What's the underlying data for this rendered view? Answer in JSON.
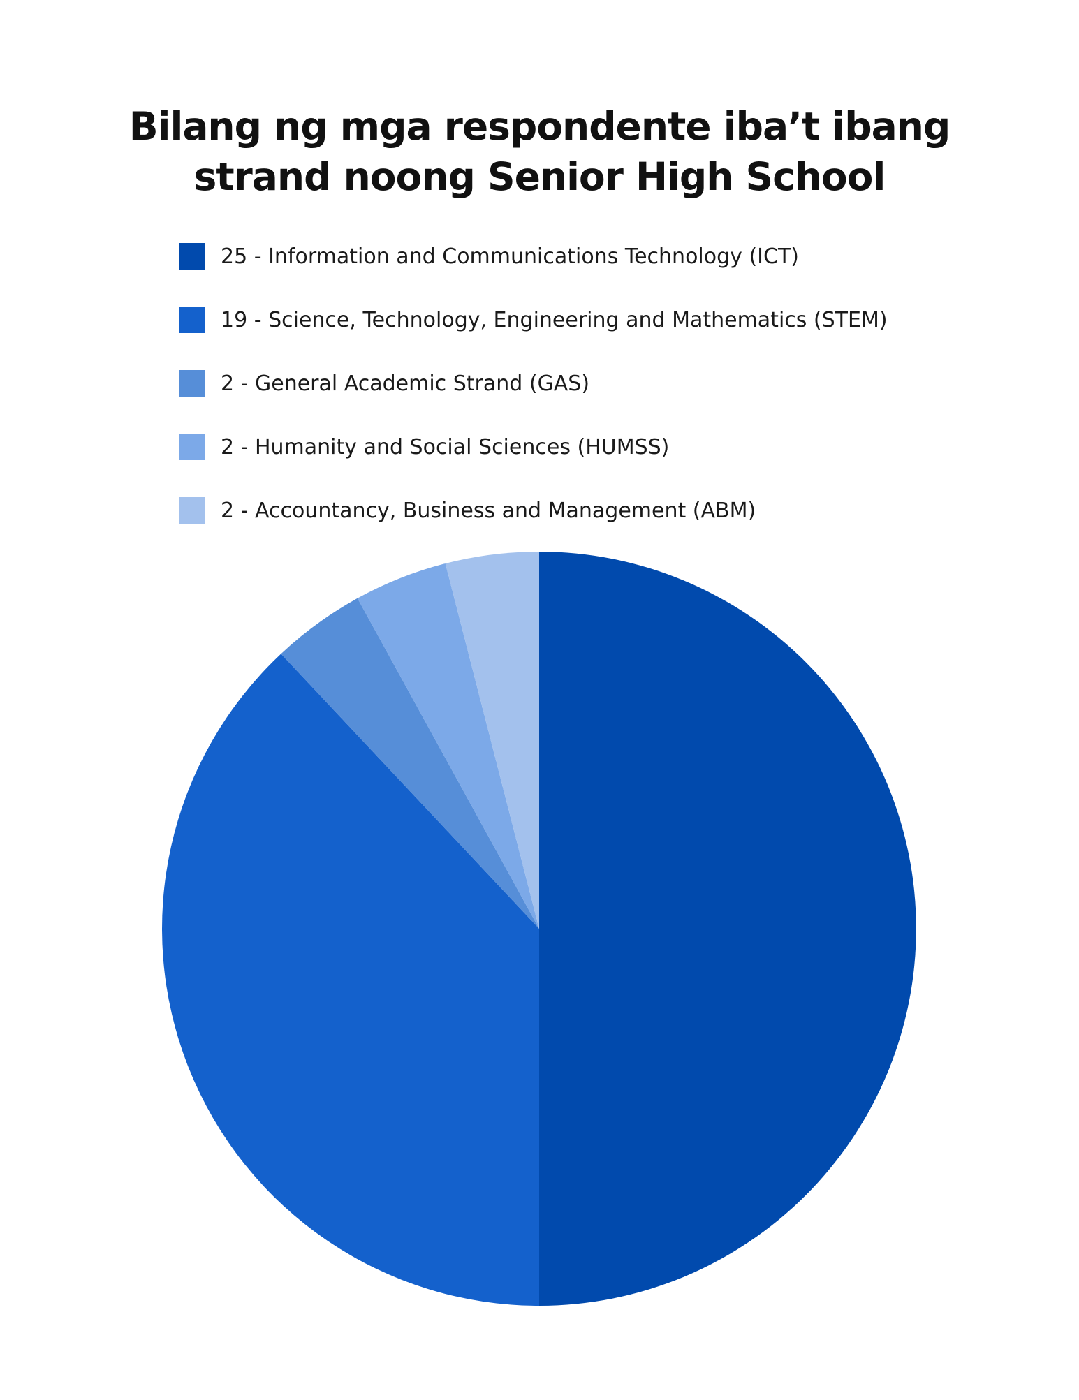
{
  "chart_data": {
    "type": "pie",
    "title_lines": [
      "Bilang ng mga respondente iba’t ibang",
      "strand noong Senior High School"
    ],
    "slices": [
      {
        "label": "25 - Information and Communications Technology (ICT)",
        "value": 25,
        "color": "#014aad"
      },
      {
        "label": "19 - Science, Technology, Engineering and Mathematics (STEM)",
        "value": 19,
        "color": "#1461cc"
      },
      {
        "label": "2 - General Academic Strand (GAS)",
        "value": 2,
        "color": "#568ed8"
      },
      {
        "label": "2 - Humanity and Social Sciences (HUMSS)",
        "value": 2,
        "color": "#7ca9e8"
      },
      {
        "label": "2 - Accountancy, Business and Management (ABM)",
        "value": 2,
        "color": "#a3c1ed"
      }
    ],
    "legend_position": "top",
    "start_angle": "12 o'clock",
    "direction": "clockwise"
  }
}
